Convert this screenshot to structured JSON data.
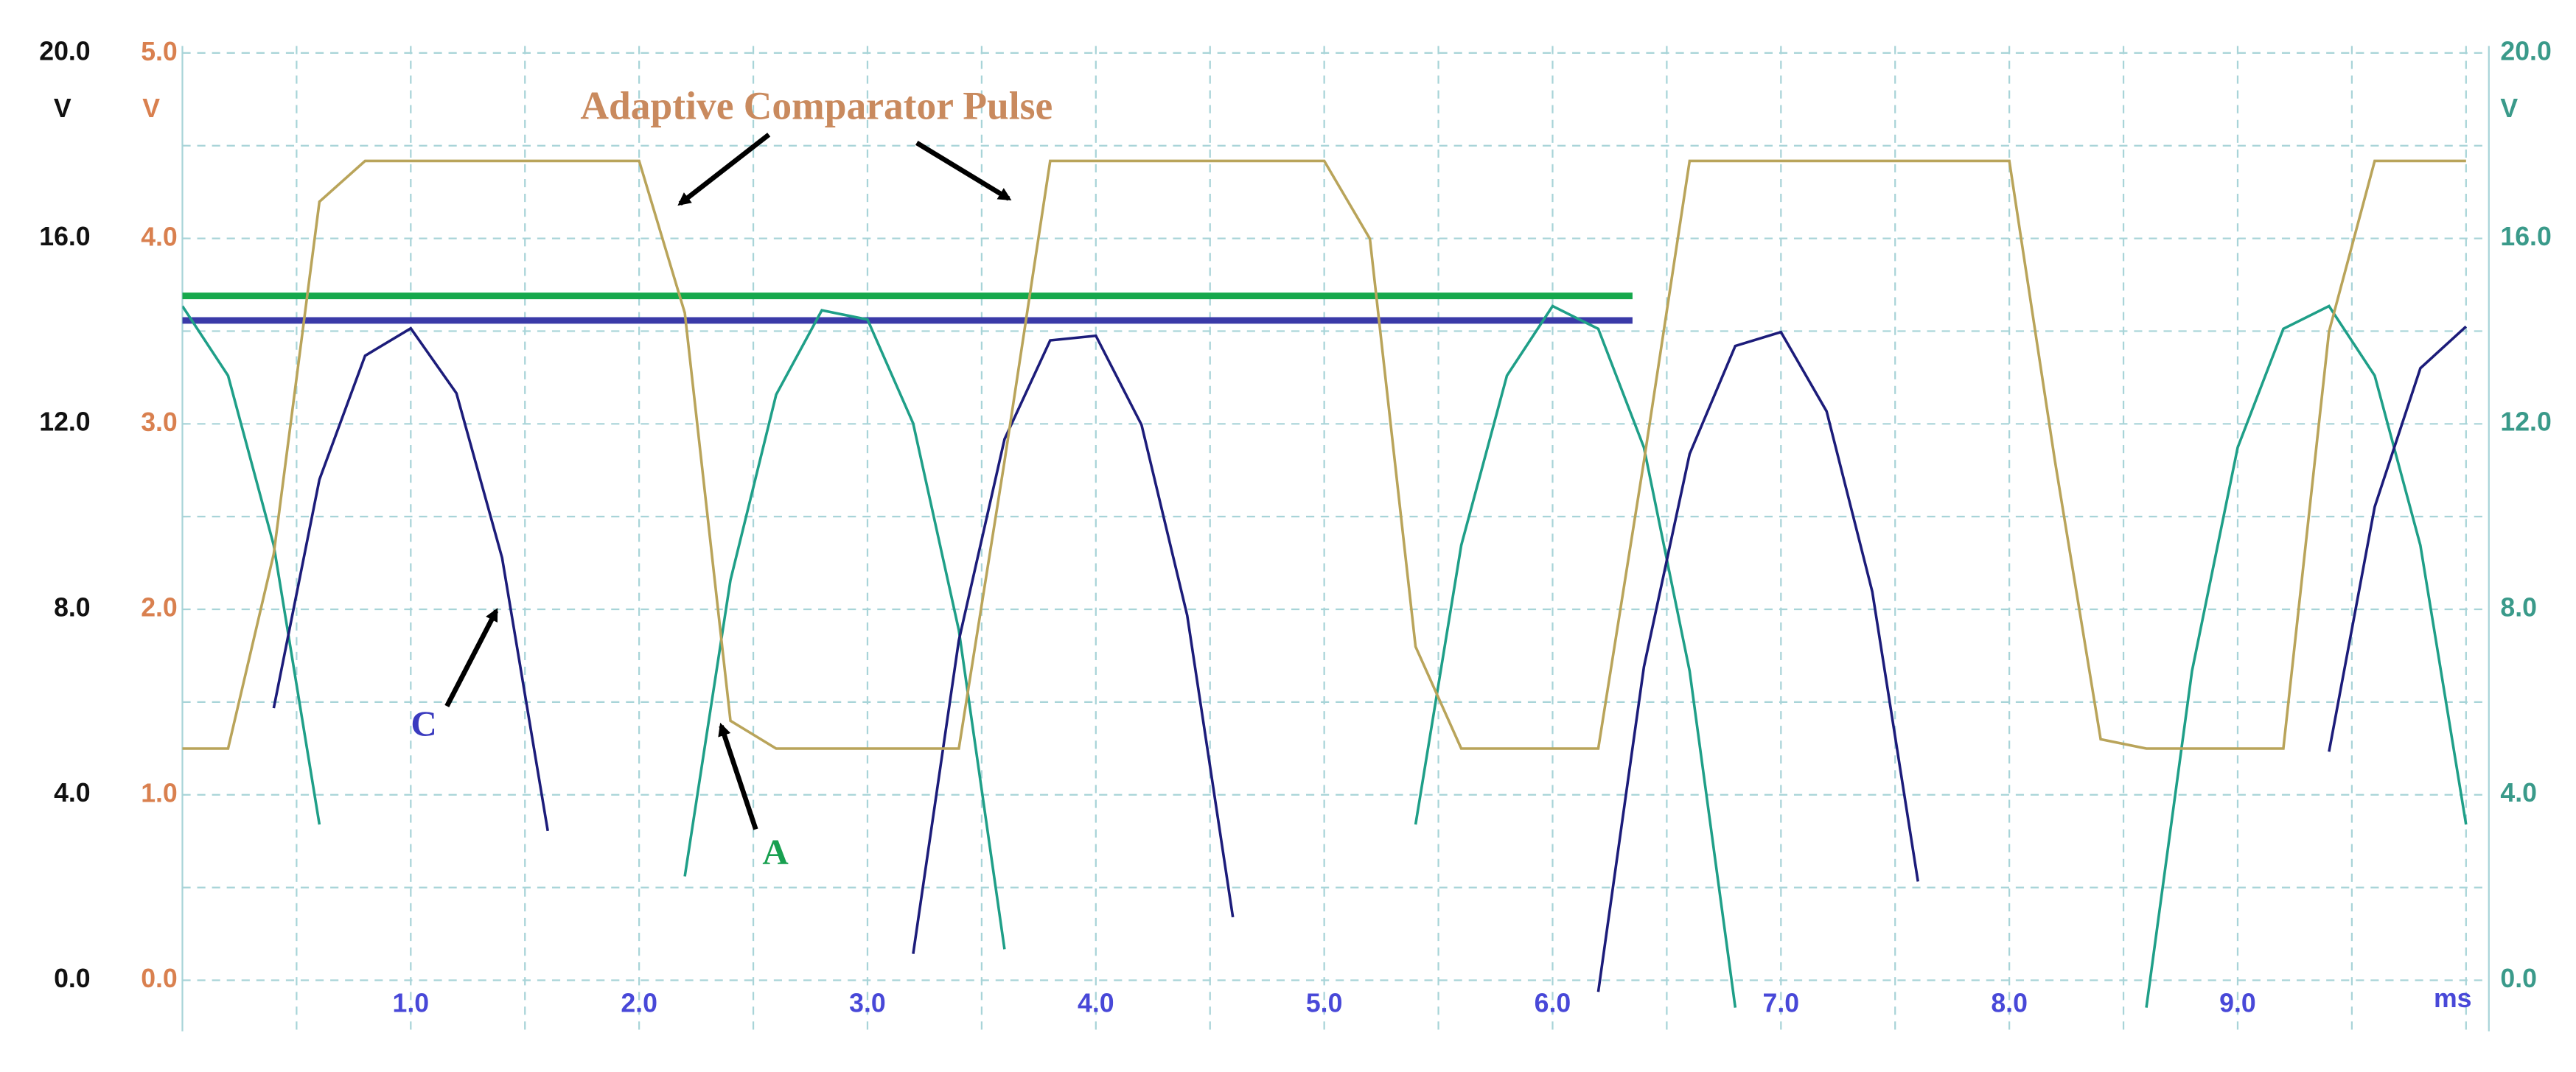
{
  "chart_data": {
    "type": "line",
    "ylabel": "V",
    "y2label": "V",
    "xlabel": "ms",
    "xlim": [
      0,
      10.1
    ],
    "ylim": [
      -1.1,
      20.15
    ],
    "y2lim": [
      -0.275,
      5.04
    ],
    "xticks": [
      {
        "value": 1,
        "label": "1.0"
      },
      {
        "value": 2,
        "label": "2.0"
      },
      {
        "value": 3,
        "label": "3.0"
      },
      {
        "value": 4,
        "label": "4.0"
      },
      {
        "value": 5,
        "label": "5.0"
      },
      {
        "value": 6,
        "label": "6.0"
      },
      {
        "value": 7,
        "label": "7.0"
      },
      {
        "value": 8,
        "label": "8.0"
      },
      {
        "value": 9,
        "label": "9.0"
      }
    ],
    "yticks": [
      {
        "value": 0,
        "label": "0.0"
      },
      {
        "value": 4,
        "label": "4.0"
      },
      {
        "value": 8,
        "label": "8.0"
      },
      {
        "value": 12,
        "label": "12.0"
      },
      {
        "value": 16,
        "label": "16.0"
      },
      {
        "value": 20,
        "label": "20.0"
      }
    ],
    "y2ticks": [
      {
        "value": 0,
        "label": "0.0"
      },
      {
        "value": 1,
        "label": "1.0"
      },
      {
        "value": 2,
        "label": "2.0"
      },
      {
        "value": 3,
        "label": "3.0"
      },
      {
        "value": 4,
        "label": "4.0"
      },
      {
        "value": 5,
        "label": "5.0"
      }
    ],
    "xgrid": [
      0.5,
      1,
      1.5,
      2,
      2.5,
      3,
      3.5,
      4,
      4.5,
      5,
      5.5,
      6,
      6.5,
      7,
      7.5,
      8,
      8.5,
      9,
      9.5,
      10
    ],
    "ygrid": [
      0,
      2,
      4,
      6,
      8,
      10,
      12,
      14,
      16,
      18,
      20
    ],
    "grid": true,
    "x": [
      0,
      0.2,
      0.4,
      0.6,
      0.8,
      1,
      1.2,
      1.4,
      1.6,
      1.8,
      2,
      2.2,
      2.4,
      2.6,
      2.8,
      3,
      3.2,
      3.4,
      3.6,
      3.8,
      4,
      4.2,
      4.4,
      4.6,
      4.8,
      5,
      5.2,
      5.4,
      5.6,
      5.8,
      6,
      6.2,
      6.4,
      6.6,
      6.8,
      7,
      7.2,
      7.4,
      7.6,
      7.8,
      8,
      8.2,
      8.4,
      8.6,
      8.8,
      9,
      9.2,
      9.4,
      9.6,
      9.8,
      10
    ],
    "series": [
      {
        "name": "A",
        "color": "#1f9f88",
        "values": [
          14.54,
          13.04,
          9.38,
          3.36,
          null,
          null,
          null,
          null,
          null,
          null,
          null,
          2.24,
          8.63,
          12.63,
          14.45,
          14.25,
          12.01,
          7.55,
          0.67,
          null,
          null,
          null,
          null,
          null,
          null,
          null,
          null,
          3.36,
          9.38,
          13.04,
          14.54,
          14.05,
          11.49,
          6.67,
          -0.59,
          null,
          null,
          null,
          null,
          null,
          null,
          null,
          null,
          -0.59,
          6.67,
          11.49,
          14.05,
          14.54,
          13.04,
          9.38,
          3.36
        ]
      },
      {
        "name": "C",
        "color": "#1c1c7a",
        "values": [
          null,
          null,
          5.87,
          10.8,
          13.47,
          14.06,
          12.66,
          9.11,
          3.22,
          null,
          null,
          null,
          null,
          null,
          null,
          null,
          0.57,
          7.33,
          11.67,
          13.8,
          13.9,
          11.98,
          7.87,
          1.36,
          null,
          null,
          null,
          null,
          null,
          null,
          null,
          -0.25,
          6.76,
          11.35,
          13.68,
          13.98,
          12.27,
          8.38,
          2.13,
          null,
          null,
          null,
          null,
          null,
          null,
          null,
          null,
          4.93,
          10.21,
          13.2,
          14.1
        ]
      },
      {
        "name": "Adaptive Comparator Pulse",
        "color": "#b9a45a",
        "axis": "y2",
        "values": [
          1.25,
          1.25,
          2.3,
          4.2,
          4.42,
          4.42,
          4.42,
          4.42,
          4.42,
          4.42,
          4.42,
          3.6,
          1.4,
          1.25,
          1.25,
          1.25,
          1.25,
          1.25,
          2.8,
          4.42,
          4.42,
          4.42,
          4.42,
          4.42,
          4.42,
          4.42,
          4.0,
          1.8,
          1.25,
          1.25,
          1.25,
          1.25,
          2.8,
          4.42,
          4.42,
          4.42,
          4.42,
          4.42,
          4.42,
          4.42,
          4.42,
          2.8,
          1.3,
          1.25,
          1.25,
          1.25,
          1.25,
          3.5,
          4.42,
          4.42,
          4.42
        ]
      }
    ],
    "reference_lines": [
      {
        "value": 14.76,
        "color": "#16a84c",
        "xlim": [
          0,
          6.35
        ]
      },
      {
        "value": 14.23,
        "color": "#3a3aa8",
        "xlim": [
          0,
          6.35
        ]
      }
    ]
  }
}
